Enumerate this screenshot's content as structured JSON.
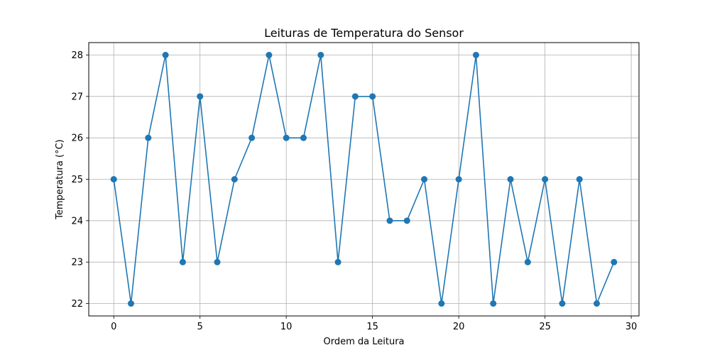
{
  "chart_data": {
    "type": "line",
    "title": "Leituras de Temperatura do Sensor",
    "xlabel": "Ordem da Leitura",
    "ylabel": "Temperatura (°C)",
    "xlim": [
      -1.45,
      30.45
    ],
    "ylim": [
      21.7,
      28.3
    ],
    "xticks": [
      0,
      5,
      10,
      15,
      20,
      25,
      30
    ],
    "yticks": [
      22,
      23,
      24,
      25,
      26,
      27,
      28
    ],
    "grid": true,
    "series": [
      {
        "color": "#1f77b4",
        "marker": "circle",
        "x": [
          0,
          1,
          2,
          3,
          4,
          5,
          6,
          7,
          8,
          9,
          10,
          11,
          12,
          13,
          14,
          15,
          16,
          17,
          18,
          19,
          20,
          21,
          22,
          23,
          24,
          25,
          26,
          27,
          28,
          29
        ],
        "y": [
          25,
          22,
          26,
          28,
          23,
          27,
          23,
          25,
          26,
          28,
          26,
          26,
          28,
          23,
          27,
          27,
          24,
          24,
          25,
          22,
          25,
          28,
          22,
          25,
          23,
          25,
          22,
          25,
          22,
          23
        ]
      }
    ]
  }
}
